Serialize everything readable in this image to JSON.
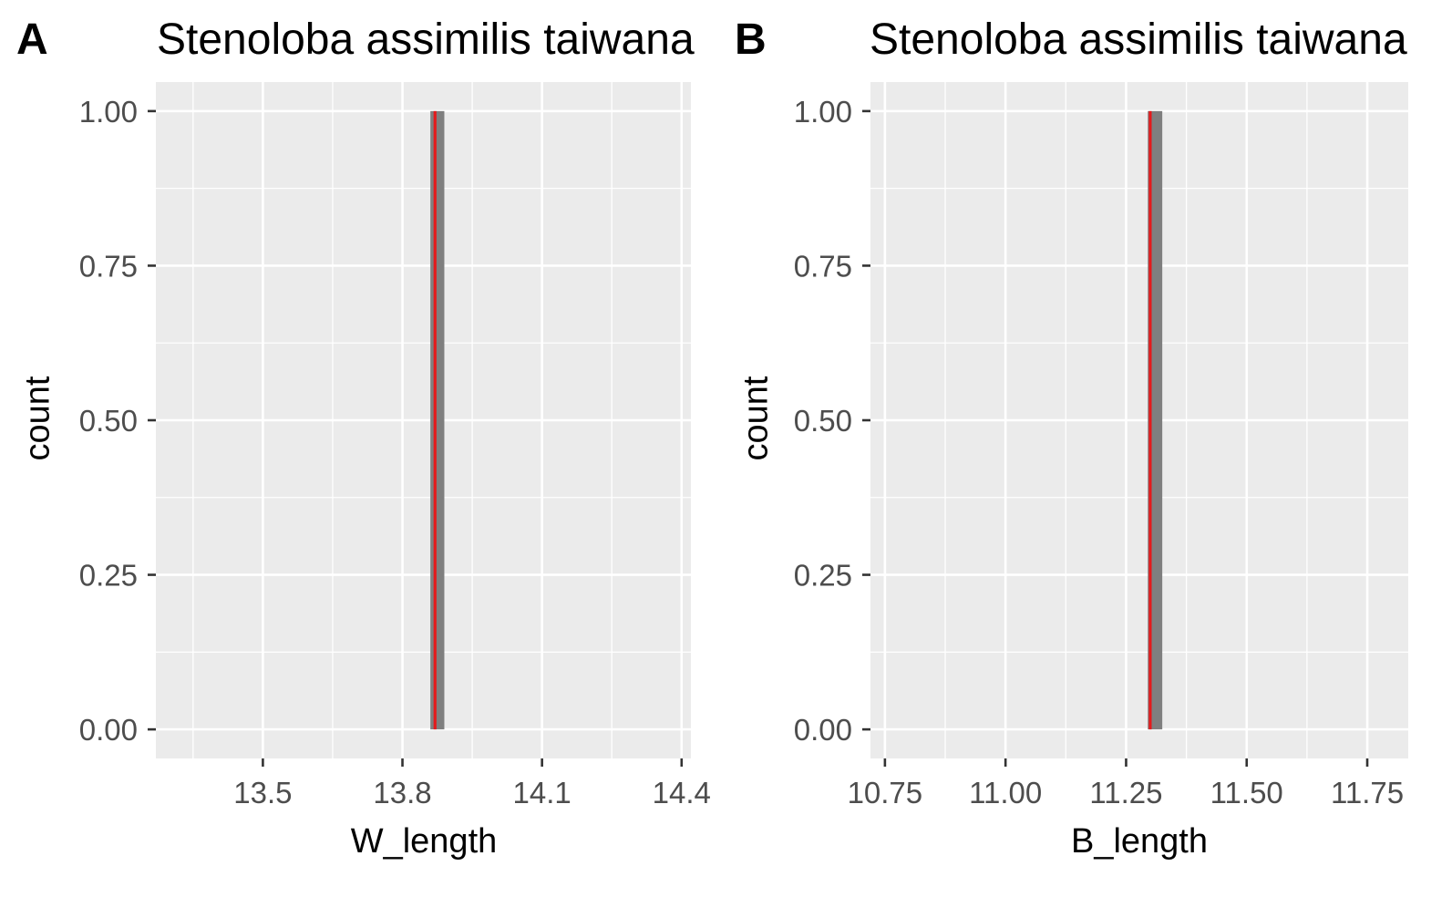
{
  "chart_data": [
    {
      "type": "bar",
      "tag": "A",
      "title": "Stenoloba assimilis taiwana",
      "xlabel": "W_length",
      "ylabel": "count",
      "xlim": [
        13.27,
        14.42
      ],
      "ylim": [
        -0.047,
        1.047
      ],
      "xticks": [
        13.5,
        13.8,
        14.1,
        14.4
      ],
      "xtick_labels": [
        "13.5",
        "13.8",
        "14.1",
        "14.4"
      ],
      "yticks": [
        0,
        0.25,
        0.5,
        0.75,
        1
      ],
      "ytick_labels": [
        "0.00",
        "0.25",
        "0.50",
        "0.75",
        "1.00"
      ],
      "bars": [
        {
          "xmin": 13.86,
          "xmax": 13.89,
          "count": 1
        }
      ],
      "vline": {
        "x": 13.87,
        "color": "#e41a1c"
      },
      "bar_color": "#7f7f7f",
      "grid": true
    },
    {
      "type": "bar",
      "tag": "B",
      "title": "Stenoloba assimilis taiwana",
      "xlabel": "B_length",
      "ylabel": "count",
      "xlim": [
        10.72,
        11.835
      ],
      "ylim": [
        -0.047,
        1.047
      ],
      "xticks": [
        10.75,
        11.0,
        11.25,
        11.5,
        11.75
      ],
      "xtick_labels": [
        "10.75",
        "11.00",
        "11.25",
        "11.50",
        "11.75"
      ],
      "yticks": [
        0,
        0.25,
        0.5,
        0.75,
        1
      ],
      "ytick_labels": [
        "0.00",
        "0.25",
        "0.50",
        "0.75",
        "1.00"
      ],
      "bars": [
        {
          "xmin": 11.295,
          "xmax": 11.325,
          "count": 1
        }
      ],
      "vline": {
        "x": 11.3,
        "color": "#e41a1c"
      },
      "bar_color": "#7f7f7f",
      "grid": true
    }
  ]
}
